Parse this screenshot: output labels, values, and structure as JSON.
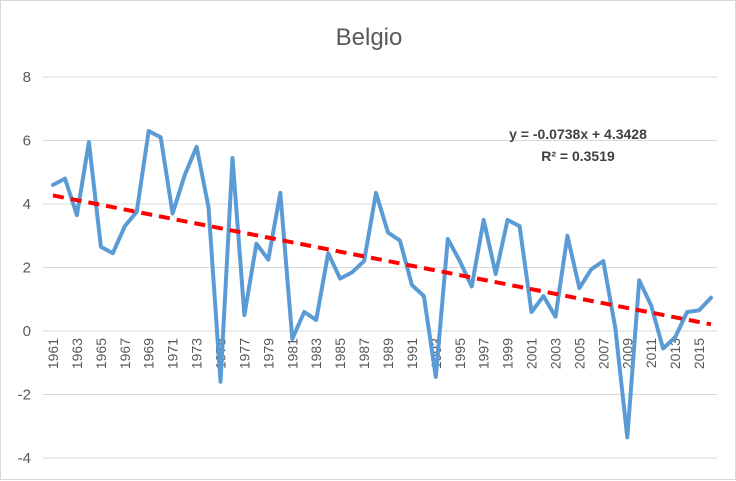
{
  "chart_data": {
    "type": "line",
    "title": "Belgio",
    "ylim": [
      -4,
      8
    ],
    "yticks": [
      -4,
      -2,
      0,
      2,
      4,
      6,
      8
    ],
    "x": [
      1961,
      1962,
      1963,
      1964,
      1965,
      1966,
      1967,
      1968,
      1969,
      1970,
      1971,
      1972,
      1973,
      1974,
      1975,
      1976,
      1977,
      1978,
      1979,
      1980,
      1981,
      1982,
      1983,
      1984,
      1985,
      1986,
      1987,
      1988,
      1989,
      1990,
      1991,
      1992,
      1993,
      1994,
      1995,
      1996,
      1997,
      1998,
      1999,
      2000,
      2001,
      2002,
      2003,
      2004,
      2005,
      2006,
      2007,
      2008,
      2009,
      2010,
      2011,
      2012,
      2013,
      2014,
      2015,
      2016
    ],
    "xtick_labels": [
      "1961",
      "1963",
      "1965",
      "1967",
      "1969",
      "1971",
      "1973",
      "1975",
      "1977",
      "1979",
      "1981",
      "1983",
      "1985",
      "1987",
      "1989",
      "1991",
      "1993",
      "1995",
      "1997",
      "1999",
      "2001",
      "2003",
      "2005",
      "2007",
      "2009",
      "2011",
      "2013",
      "2015"
    ],
    "series": [
      {
        "color": "#5b9bd5",
        "values": [
          4.6,
          4.8,
          3.65,
          5.95,
          2.65,
          2.45,
          3.3,
          3.75,
          6.3,
          6.1,
          3.7,
          4.9,
          5.8,
          3.9,
          -1.6,
          5.45,
          0.5,
          2.75,
          2.25,
          4.35,
          -0.25,
          0.6,
          0.35,
          2.45,
          1.65,
          1.85,
          2.2,
          4.35,
          3.1,
          2.85,
          1.45,
          1.1,
          -1.45,
          2.9,
          2.2,
          1.4,
          3.5,
          1.8,
          3.5,
          3.3,
          0.6,
          1.1,
          0.45,
          3.0,
          1.35,
          1.95,
          2.2,
          0.1,
          -3.35,
          1.6,
          0.8,
          -0.55,
          -0.2,
          0.6,
          0.65,
          1.05
        ]
      }
    ],
    "trendline": {
      "color": "#ff0000",
      "style": "dashed",
      "slope": -0.0738,
      "intercept": 4.3428,
      "equation": "y = -0.0738x + 4.3428",
      "r2": "R² = 0.3519"
    },
    "grid": true,
    "legend": "none"
  }
}
